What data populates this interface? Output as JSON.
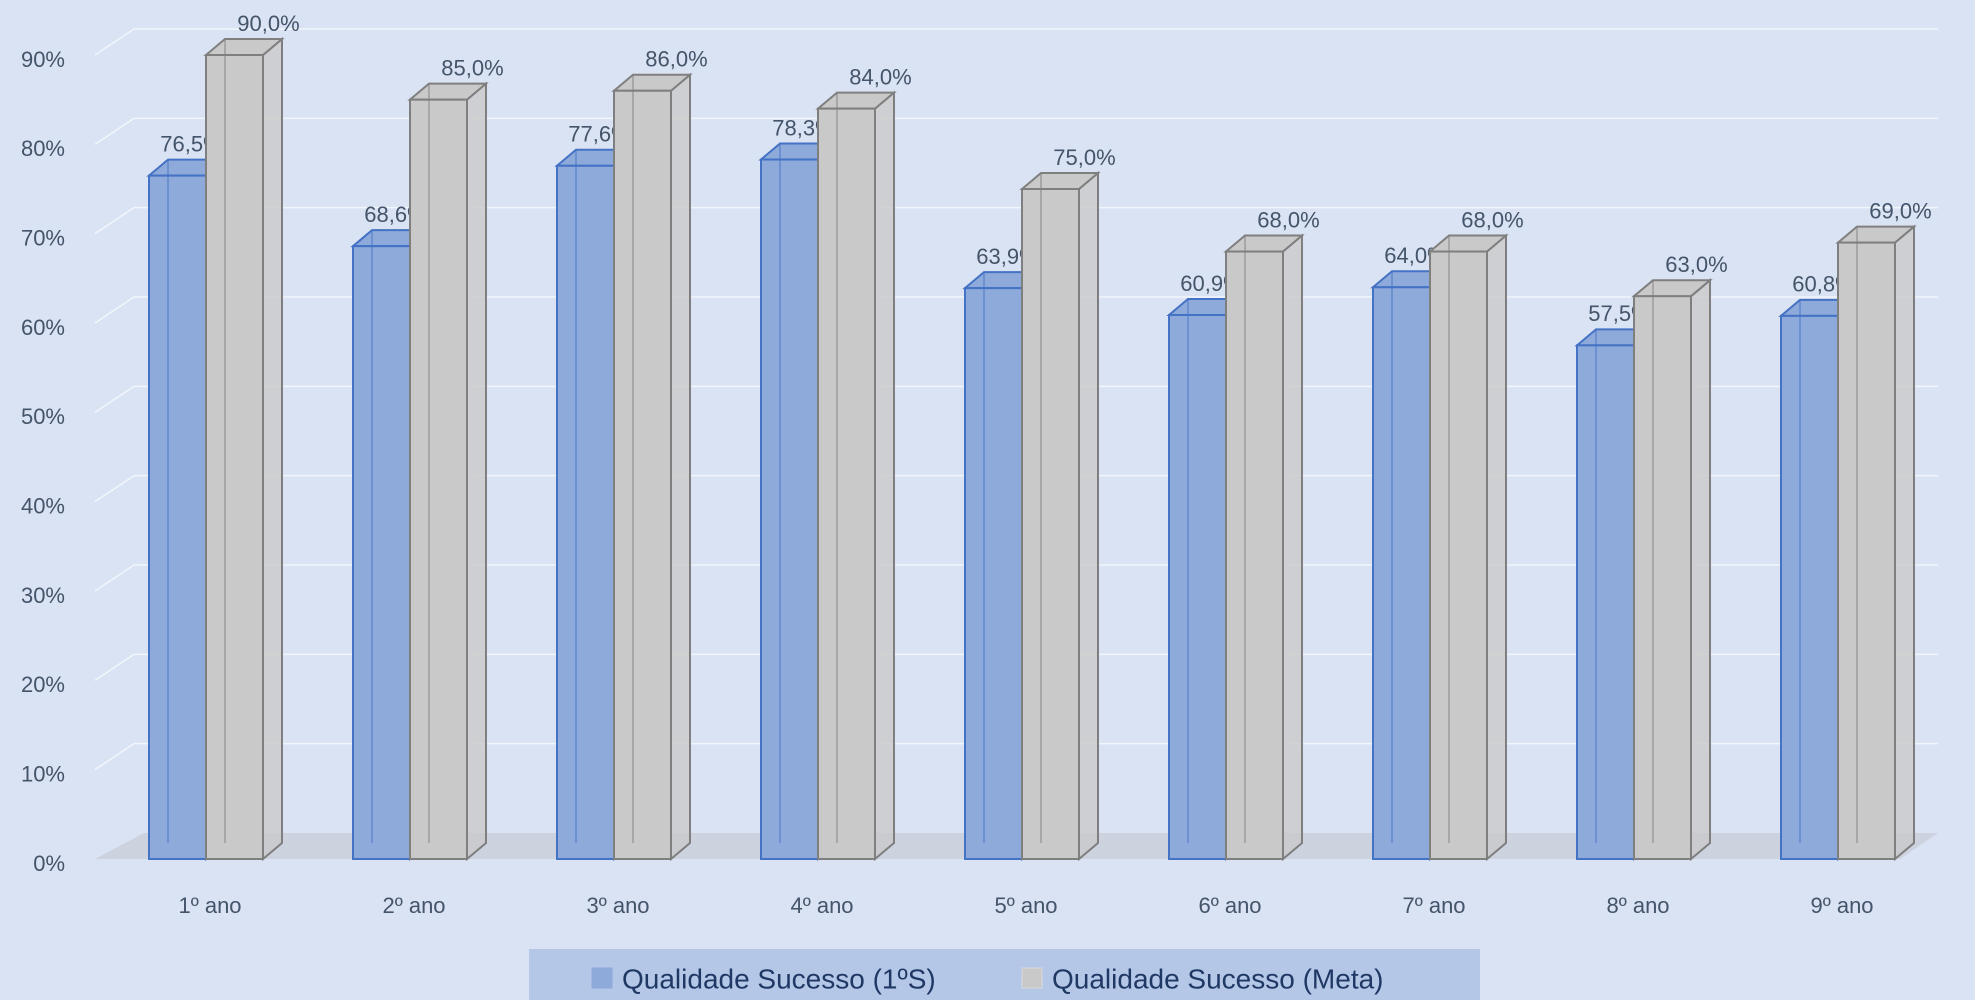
{
  "chart_data": {
    "type": "bar3d",
    "categories": [
      "1º ano",
      "2º ano",
      "3º ano",
      "4º ano",
      "5º ano",
      "6º ano",
      "7º ano",
      "8º ano",
      "9º ano"
    ],
    "series": [
      {
        "name": "Qualidade Sucesso (1ºS)",
        "color": "#8eaadb",
        "stroke": "#4472c4",
        "values": [
          76.5,
          68.6,
          77.6,
          78.3,
          63.9,
          60.9,
          64.0,
          57.5,
          60.8
        ],
        "value_labels": [
          "76,5%",
          "68,6%",
          "77,6%",
          "78,3%",
          "63,9%",
          "60,9%",
          "64,0%",
          "57,5%",
          "60,8%"
        ]
      },
      {
        "name": "Qualidade Sucesso (Meta)",
        "color": "#c9c9c9",
        "stroke": "#7f7f7f",
        "values": [
          90,
          85,
          86,
          84,
          75,
          68,
          68,
          63,
          69
        ],
        "value_labels": [
          "90,0%",
          "85,0%",
          "86,0%",
          "84,0%",
          "75,0%",
          "68,0%",
          "68,0%",
          "63,0%",
          "69,0%"
        ]
      }
    ],
    "ylim": [
      0,
      90
    ],
    "yticks": [
      {
        "value": 0,
        "label": "0%"
      },
      {
        "value": 10,
        "label": "10%"
      },
      {
        "value": 20,
        "label": "20%"
      },
      {
        "value": 30,
        "label": "30%"
      },
      {
        "value": 40,
        "label": "40%"
      },
      {
        "value": 50,
        "label": "50%"
      },
      {
        "value": 60,
        "label": "60%"
      },
      {
        "value": 70,
        "label": "70%"
      },
      {
        "value": 80,
        "label": "80%"
      },
      {
        "value": 90,
        "label": "90%"
      }
    ],
    "grid": true,
    "legend": "bottom"
  }
}
